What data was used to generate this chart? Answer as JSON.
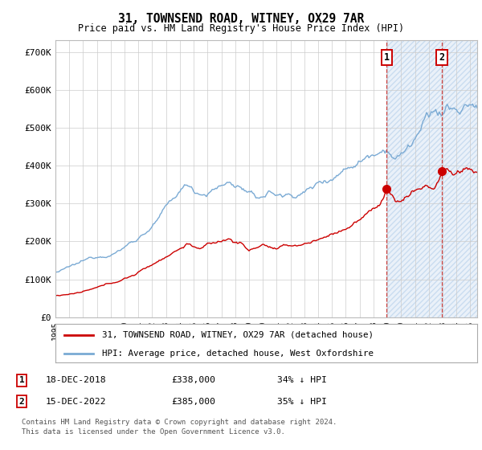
{
  "title": "31, TOWNSEND ROAD, WITNEY, OX29 7AR",
  "subtitle": "Price paid vs. HM Land Registry's House Price Index (HPI)",
  "ylabel_ticks": [
    "£0",
    "£100K",
    "£200K",
    "£300K",
    "£400K",
    "£500K",
    "£600K",
    "£700K"
  ],
  "ytick_values": [
    0,
    100000,
    200000,
    300000,
    400000,
    500000,
    600000,
    700000
  ],
  "ylim": [
    0,
    730000
  ],
  "xlim_start": 1995.0,
  "xlim_end": 2025.5,
  "hpi_color": "#7aaad4",
  "price_color": "#cc0000",
  "dashed_color": "#cc4444",
  "marker1_date": 2018.96,
  "marker2_date": 2022.96,
  "sale1_price_val": 338000,
  "sale2_price_val": 385000,
  "sale1_label": "18-DEC-2018",
  "sale1_price": "£338,000",
  "sale1_pct": "34% ↓ HPI",
  "sale2_label": "15-DEC-2022",
  "sale2_price": "£385,000",
  "sale2_pct": "35% ↓ HPI",
  "legend_line1": "31, TOWNSEND ROAD, WITNEY, OX29 7AR (detached house)",
  "legend_line2": "HPI: Average price, detached house, West Oxfordshire",
  "footnote1": "Contains HM Land Registry data © Crown copyright and database right 2024.",
  "footnote2": "This data is licensed under the Open Government Licence v3.0.",
  "background_color": "#ffffff",
  "grid_color": "#cccccc",
  "hatch_color": "#adc8e8",
  "hatch_fill_alpha": 0.25
}
